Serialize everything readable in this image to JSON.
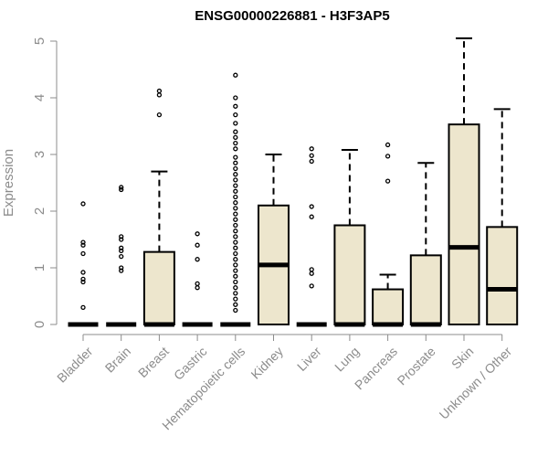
{
  "chart_data": {
    "type": "boxplot",
    "title": "ENSG00000226881 - H3F3AP5",
    "ylabel": "Expression",
    "xlabel": "",
    "ylim": [
      0,
      5
    ],
    "yticks": [
      0,
      1,
      2,
      3,
      4,
      5
    ],
    "colors": {
      "box_fill": "#ede6cd",
      "box_stroke": "#000000",
      "axis": "#8c8c8c"
    },
    "categories": [
      "Bladder",
      "Brain",
      "Breast",
      "Gastric",
      "Hematopoietic cells",
      "Kidney",
      "Liver",
      "Lung",
      "Pancreas",
      "Prostate",
      "Skin",
      "Unknown / Other"
    ],
    "boxes": [
      {
        "q1": 0,
        "median": 0,
        "q3": 0,
        "whisker_low": 0,
        "whisker_high": 0,
        "outliers": [
          0.3,
          0.75,
          0.8,
          0.92,
          1.25,
          1.4,
          1.45,
          2.13
        ]
      },
      {
        "q1": 0,
        "median": 0,
        "q3": 0,
        "whisker_low": 0,
        "whisker_high": 0,
        "outliers": [
          0.95,
          1.0,
          1.2,
          1.3,
          1.35,
          1.5,
          1.55,
          2.38,
          2.42
        ]
      },
      {
        "q1": 0,
        "median": 0,
        "q3": 1.28,
        "whisker_low": 0,
        "whisker_high": 2.7,
        "outliers": [
          3.7,
          4.05,
          4.12
        ]
      },
      {
        "q1": 0,
        "median": 0,
        "q3": 0,
        "whisker_low": 0,
        "whisker_high": 0,
        "outliers": [
          0.65,
          0.72,
          1.15,
          1.4,
          1.6
        ]
      },
      {
        "q1": 0,
        "median": 0,
        "q3": 0,
        "whisker_low": 0,
        "whisker_high": 0,
        "outliers": [
          0.25,
          0.35,
          0.45,
          0.55,
          0.65,
          0.75,
          0.85,
          0.95,
          1.05,
          1.15,
          1.25,
          1.35,
          1.45,
          1.55,
          1.65,
          1.75,
          1.85,
          1.95,
          2.05,
          2.15,
          2.25,
          2.35,
          2.45,
          2.55,
          2.65,
          2.75,
          2.85,
          2.95,
          3.1,
          3.2,
          3.3,
          3.4,
          3.55,
          3.7,
          3.85,
          4.0,
          4.4
        ]
      },
      {
        "q1": 0,
        "median": 1.05,
        "q3": 2.1,
        "whisker_low": 0,
        "whisker_high": 3.0,
        "outliers": []
      },
      {
        "q1": 0,
        "median": 0,
        "q3": 0,
        "whisker_low": 0,
        "whisker_high": 0,
        "outliers": [
          0.68,
          0.9,
          0.97,
          1.9,
          2.08,
          2.88,
          2.98,
          3.1
        ]
      },
      {
        "q1": 0,
        "median": 0,
        "q3": 1.75,
        "whisker_low": 0,
        "whisker_high": 3.08,
        "outliers": []
      },
      {
        "q1": 0,
        "median": 0,
        "q3": 0.62,
        "whisker_low": 0,
        "whisker_high": 0.88,
        "outliers": [
          2.53,
          2.97,
          3.17
        ]
      },
      {
        "q1": 0,
        "median": 0,
        "q3": 1.22,
        "whisker_low": 0,
        "whisker_high": 2.85,
        "outliers": []
      },
      {
        "q1": 0,
        "median": 1.36,
        "q3": 3.53,
        "whisker_low": 0,
        "whisker_high": 5.05,
        "outliers": []
      },
      {
        "q1": 0,
        "median": 0.62,
        "q3": 1.72,
        "whisker_low": 0,
        "whisker_high": 3.8,
        "outliers": []
      }
    ]
  }
}
